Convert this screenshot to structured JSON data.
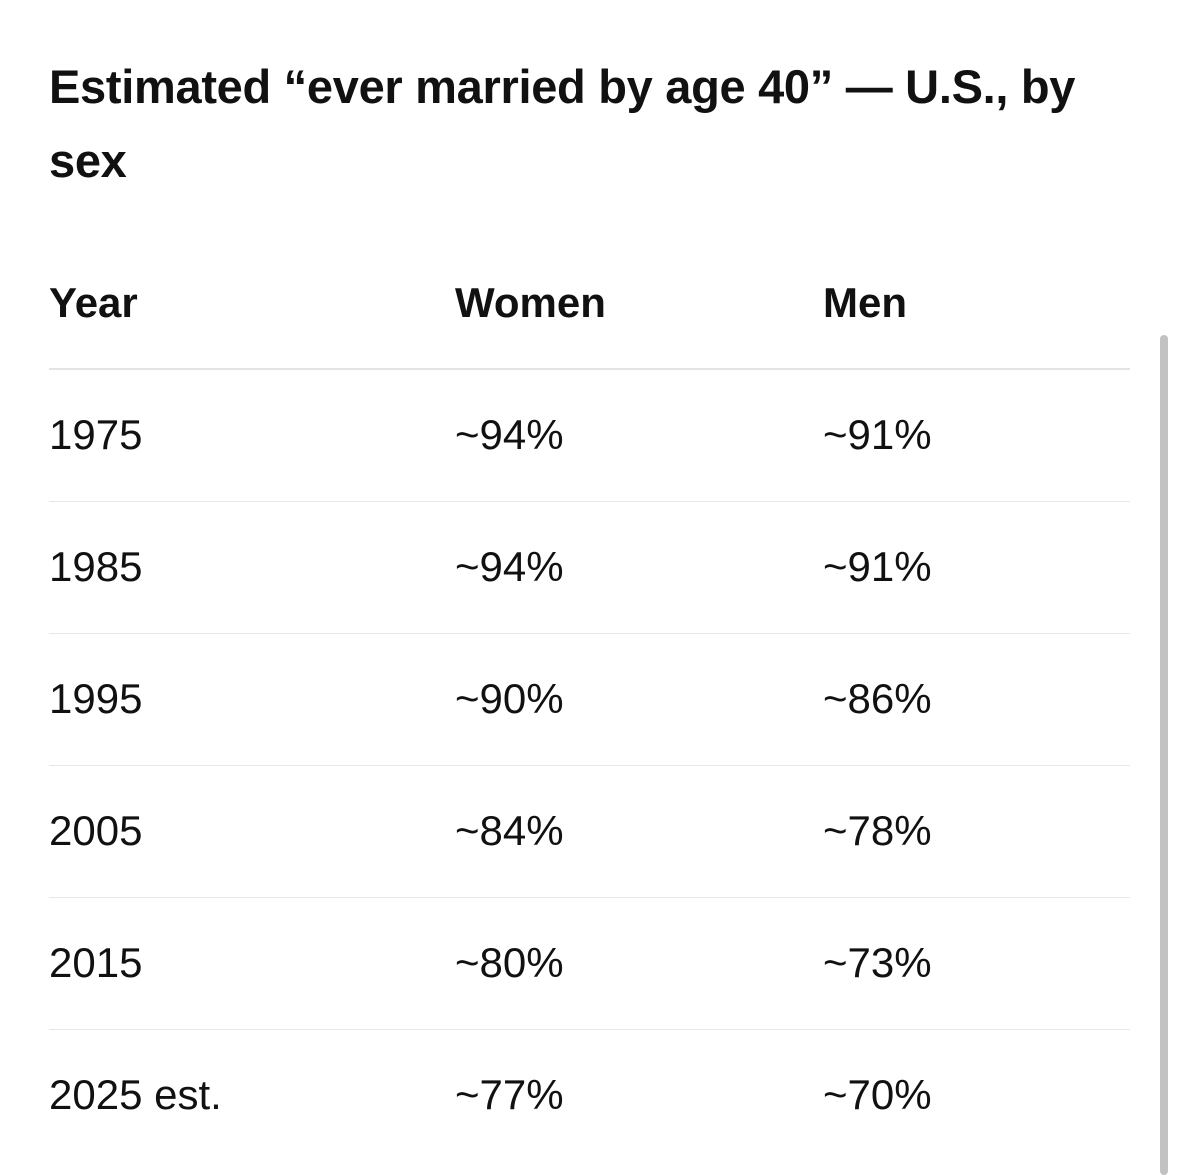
{
  "title": "Estimated “ever married by age 40” — U.S., by sex",
  "table": {
    "headers": {
      "year": "Year",
      "women": "Women",
      "men": "Men"
    },
    "rows": [
      {
        "year": "1975",
        "women": "~94%",
        "men": "~91%"
      },
      {
        "year": "1985",
        "women": "~94%",
        "men": "~91%"
      },
      {
        "year": "1995",
        "women": "~90%",
        "men": "~86%"
      },
      {
        "year": "2005",
        "women": "~84%",
        "men": "~78%"
      },
      {
        "year": "2015",
        "women": "~80%",
        "men": "~73%"
      },
      {
        "year": "2025 est.",
        "women": "~77%",
        "men": "~70%"
      }
    ]
  },
  "colors": {
    "text": "#111111",
    "divider": "#e6e6e6",
    "scrollbar": "#c2c2c2",
    "background": "#ffffff"
  }
}
